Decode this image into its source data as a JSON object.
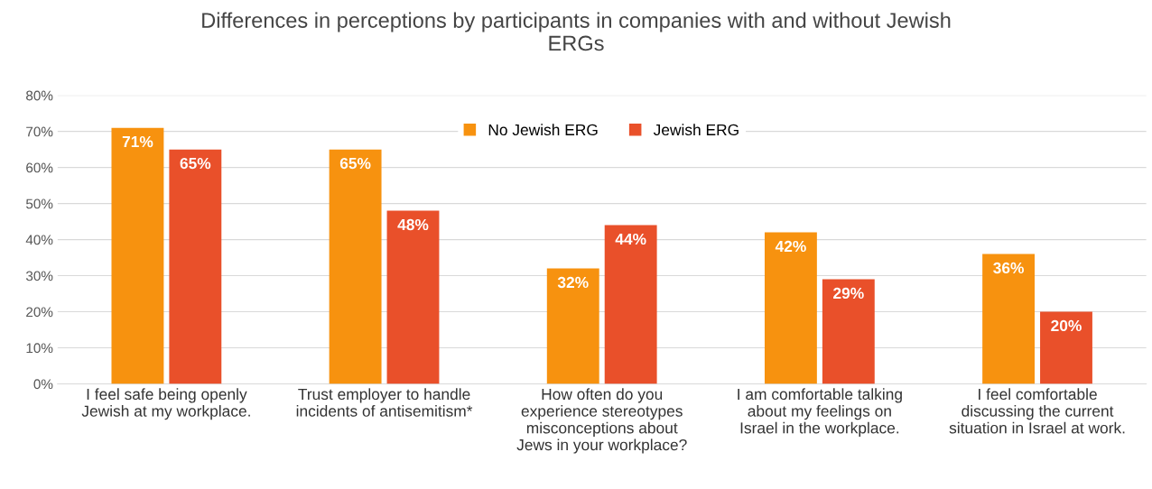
{
  "chart_data": {
    "type": "bar",
    "title": "Differences in perceptions by participants in companies with and without Jewish\nERGs",
    "categories": [
      "I feel safe being openly\nJewish at my workplace.",
      "Trust employer to handle\nincidents of antisemitism*",
      "How often do you\nexperience stereotypes\nmisconceptions about\nJews in your workplace?",
      "I am comfortable talking\nabout my feelings on\nIsrael in the workplace.",
      "I feel comfortable\ndiscussing the current\nsituation in Israel at work."
    ],
    "series": [
      {
        "name": "No Jewish ERG",
        "color": "#f7920f",
        "values": [
          71,
          65,
          32,
          42,
          36
        ],
        "value_labels": [
          "71%",
          "65%",
          "32%",
          "42%",
          "36%"
        ]
      },
      {
        "name": "Jewish ERG",
        "color": "#e9502a",
        "values": [
          65,
          48,
          44,
          29,
          20
        ],
        "value_labels": [
          "65%",
          "48%",
          "44%",
          "29%",
          "20%"
        ]
      }
    ],
    "ylim": [
      0,
      80
    ],
    "yticks": [
      {
        "value": 0,
        "label": "0%"
      },
      {
        "value": 10,
        "label": "10%"
      },
      {
        "value": 20,
        "label": "20%"
      },
      {
        "value": 30,
        "label": "30%"
      },
      {
        "value": 40,
        "label": "40%"
      },
      {
        "value": 50,
        "label": "50%"
      },
      {
        "value": 60,
        "label": "60%"
      },
      {
        "value": 70,
        "label": "70%"
      },
      {
        "value": 80,
        "label": "80%"
      }
    ],
    "grid": "y",
    "legend": "top"
  }
}
